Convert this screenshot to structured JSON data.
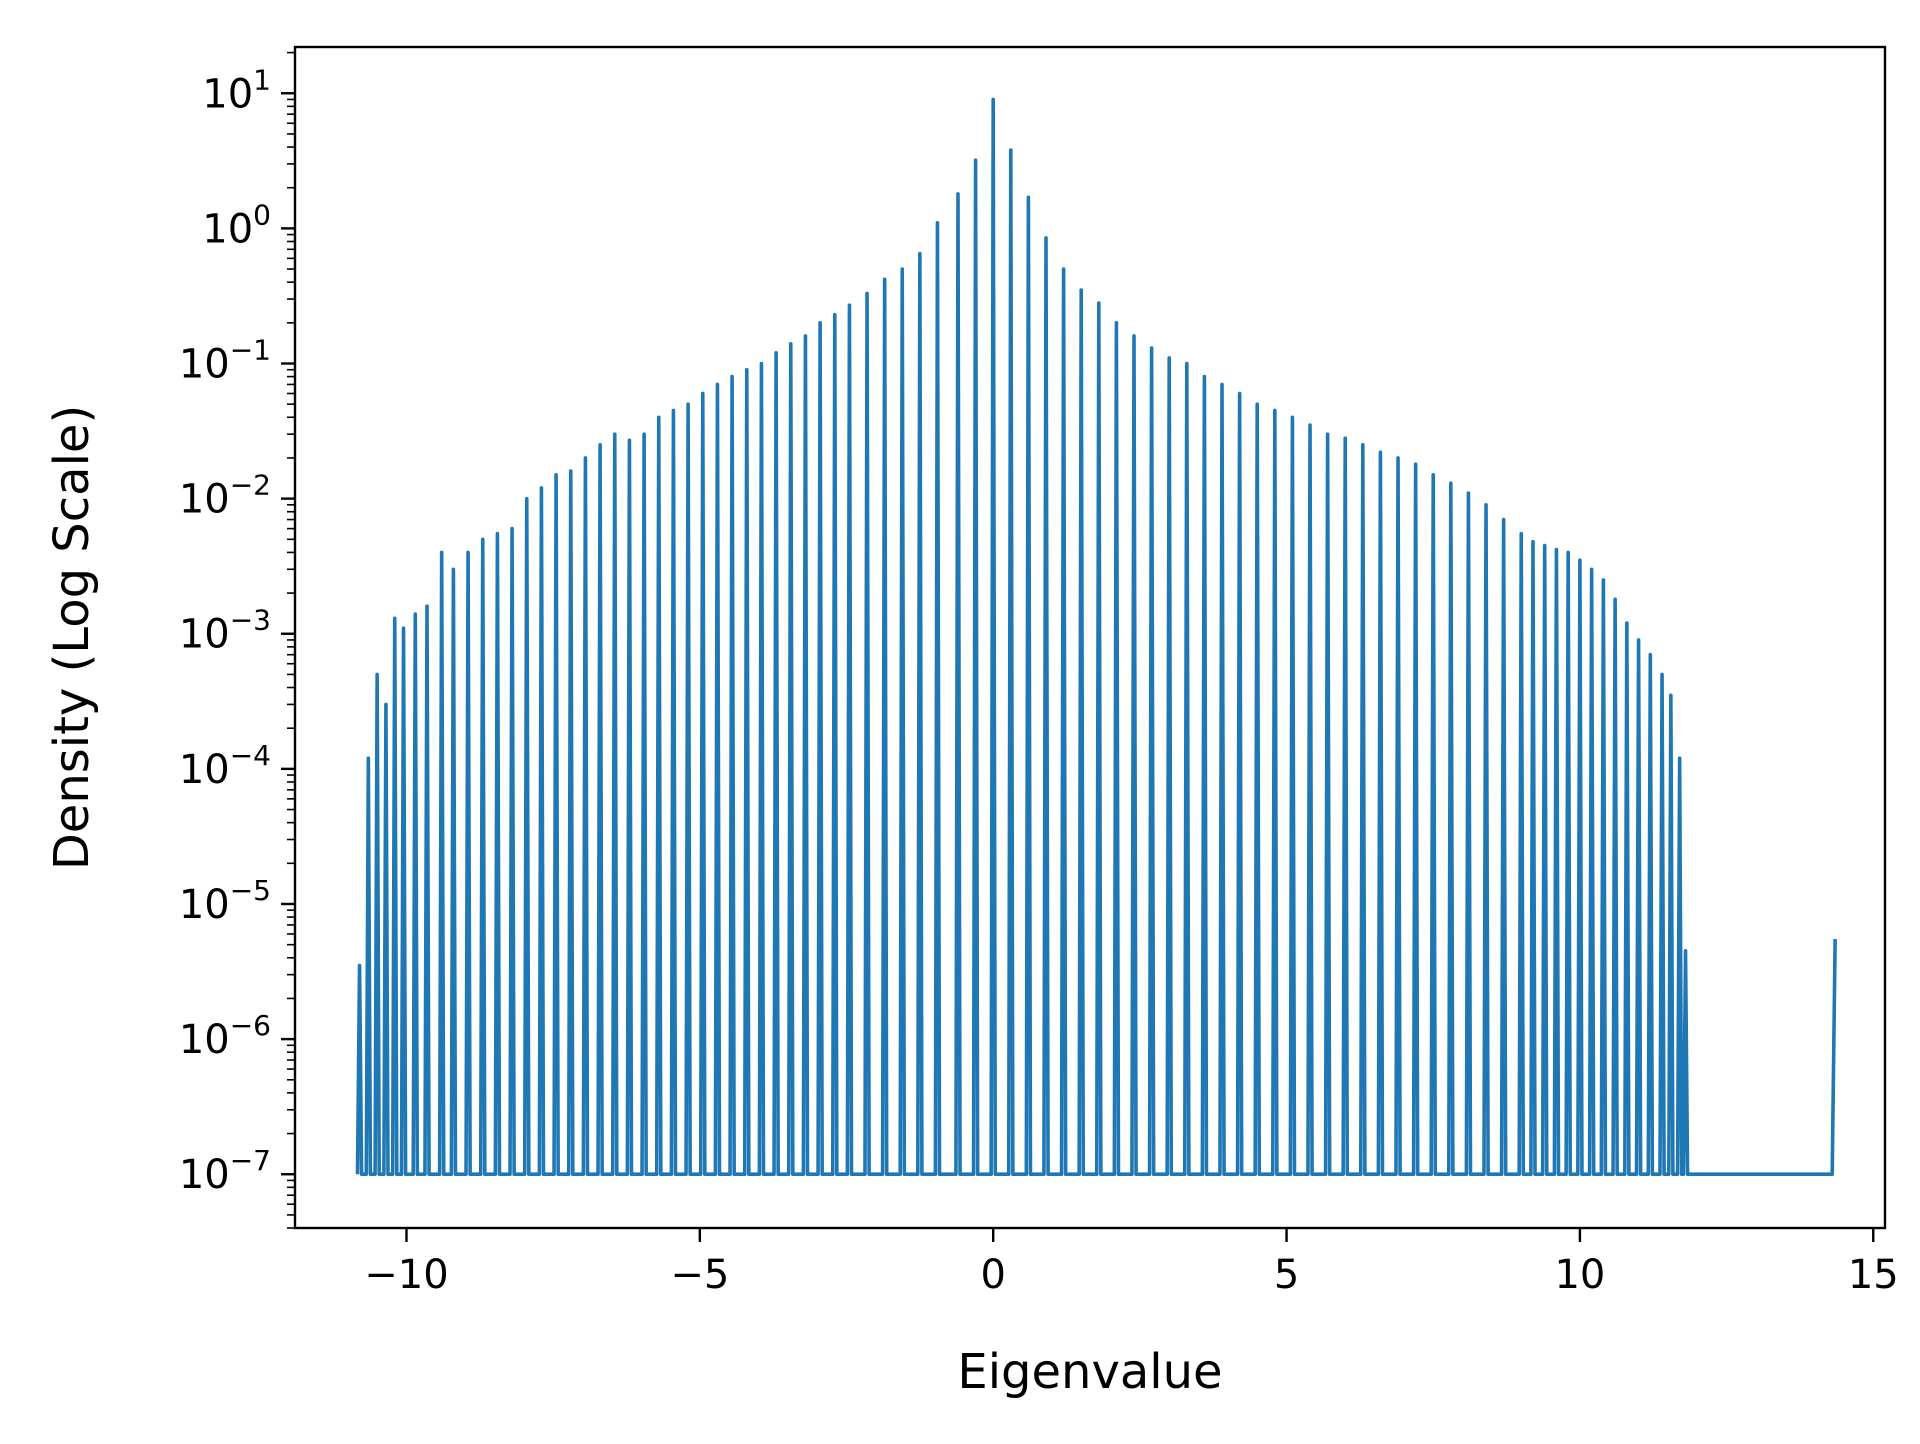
{
  "chart_data": {
    "type": "line",
    "title": "",
    "xlabel": "Eigenvalue",
    "ylabel": "Density (Log Scale)",
    "xlim": [
      -11.9,
      15.2
    ],
    "ylim": [
      4e-08,
      22
    ],
    "yscale": "log",
    "grid": false,
    "legend": "none",
    "line_color": "#1f77b4",
    "xticks": [
      -10,
      -5,
      0,
      5,
      10,
      15
    ],
    "xtick_labels": [
      "−10",
      "−5",
      "0",
      "5",
      "10",
      "15"
    ],
    "yticks": [
      1e-07,
      1e-06,
      1e-05,
      0.0001,
      0.001,
      0.01,
      0.1,
      1,
      10
    ],
    "ytick_labels": [
      {
        "base": "10",
        "exp": "−7"
      },
      {
        "base": "10",
        "exp": "−6"
      },
      {
        "base": "10",
        "exp": "−5"
      },
      {
        "base": "10",
        "exp": "−4"
      },
      {
        "base": "10",
        "exp": "−3"
      },
      {
        "base": "10",
        "exp": "−2"
      },
      {
        "base": "10",
        "exp": "−1"
      },
      {
        "base": "10",
        "exp": "0"
      },
      {
        "base": "10",
        "exp": "1"
      }
    ],
    "series": [
      {
        "floor": 1e-07,
        "peaks": [
          [
            -10.8,
            3.5e-06
          ],
          [
            -10.65,
            0.00012
          ],
          [
            -10.5,
            0.0005
          ],
          [
            -10.35,
            0.0003
          ],
          [
            -10.2,
            0.0013
          ],
          [
            -10.05,
            0.0011
          ],
          [
            -9.85,
            0.0014
          ],
          [
            -9.65,
            0.0016
          ],
          [
            -9.4,
            0.004
          ],
          [
            -9.2,
            0.003
          ],
          [
            -8.95,
            0.004
          ],
          [
            -8.7,
            0.005
          ],
          [
            -8.45,
            0.0055
          ],
          [
            -8.2,
            0.006
          ],
          [
            -7.95,
            0.01
          ],
          [
            -7.7,
            0.012
          ],
          [
            -7.45,
            0.015
          ],
          [
            -7.2,
            0.016
          ],
          [
            -6.95,
            0.02
          ],
          [
            -6.7,
            0.025
          ],
          [
            -6.45,
            0.03
          ],
          [
            -6.2,
            0.027
          ],
          [
            -5.95,
            0.03
          ],
          [
            -5.7,
            0.04
          ],
          [
            -5.45,
            0.045
          ],
          [
            -5.2,
            0.05
          ],
          [
            -4.95,
            0.06
          ],
          [
            -4.7,
            0.07
          ],
          [
            -4.45,
            0.08
          ],
          [
            -4.2,
            0.09
          ],
          [
            -3.95,
            0.1
          ],
          [
            -3.7,
            0.12
          ],
          [
            -3.45,
            0.14
          ],
          [
            -3.2,
            0.16
          ],
          [
            -2.95,
            0.2
          ],
          [
            -2.7,
            0.23
          ],
          [
            -2.45,
            0.27
          ],
          [
            -2.15,
            0.33
          ],
          [
            -1.85,
            0.42
          ],
          [
            -1.55,
            0.5
          ],
          [
            -1.25,
            0.65
          ],
          [
            -0.95,
            1.1
          ],
          [
            -0.6,
            1.8
          ],
          [
            -0.3,
            3.2
          ],
          [
            0.0,
            9.0
          ],
          [
            0.3,
            3.8
          ],
          [
            0.6,
            1.7
          ],
          [
            0.9,
            0.85
          ],
          [
            1.2,
            0.5
          ],
          [
            1.5,
            0.35
          ],
          [
            1.8,
            0.28
          ],
          [
            2.1,
            0.2
          ],
          [
            2.4,
            0.16
          ],
          [
            2.7,
            0.13
          ],
          [
            3.0,
            0.11
          ],
          [
            3.3,
            0.1
          ],
          [
            3.6,
            0.08
          ],
          [
            3.9,
            0.07
          ],
          [
            4.2,
            0.06
          ],
          [
            4.5,
            0.05
          ],
          [
            4.8,
            0.045
          ],
          [
            5.1,
            0.04
          ],
          [
            5.4,
            0.035
          ],
          [
            5.7,
            0.03
          ],
          [
            6.0,
            0.028
          ],
          [
            6.3,
            0.025
          ],
          [
            6.6,
            0.022
          ],
          [
            6.9,
            0.02
          ],
          [
            7.2,
            0.018
          ],
          [
            7.5,
            0.015
          ],
          [
            7.8,
            0.013
          ],
          [
            8.1,
            0.011
          ],
          [
            8.4,
            0.009
          ],
          [
            8.7,
            0.007
          ],
          [
            9.0,
            0.0055
          ],
          [
            9.2,
            0.0048
          ],
          [
            9.4,
            0.0045
          ],
          [
            9.6,
            0.0042
          ],
          [
            9.8,
            0.004
          ],
          [
            10.0,
            0.0035
          ],
          [
            10.2,
            0.003
          ],
          [
            10.4,
            0.0025
          ],
          [
            10.6,
            0.0018
          ],
          [
            10.8,
            0.0012
          ],
          [
            11.0,
            0.0009
          ],
          [
            11.2,
            0.0007
          ],
          [
            11.4,
            0.0005
          ],
          [
            11.55,
            0.00035
          ],
          [
            11.7,
            0.00012
          ],
          [
            11.8,
            4.5e-06
          ]
        ],
        "end_segment": [
          [
            11.9,
            1e-07
          ],
          [
            14.3,
            1e-07
          ],
          [
            14.35,
            5.5e-06
          ]
        ]
      }
    ]
  }
}
